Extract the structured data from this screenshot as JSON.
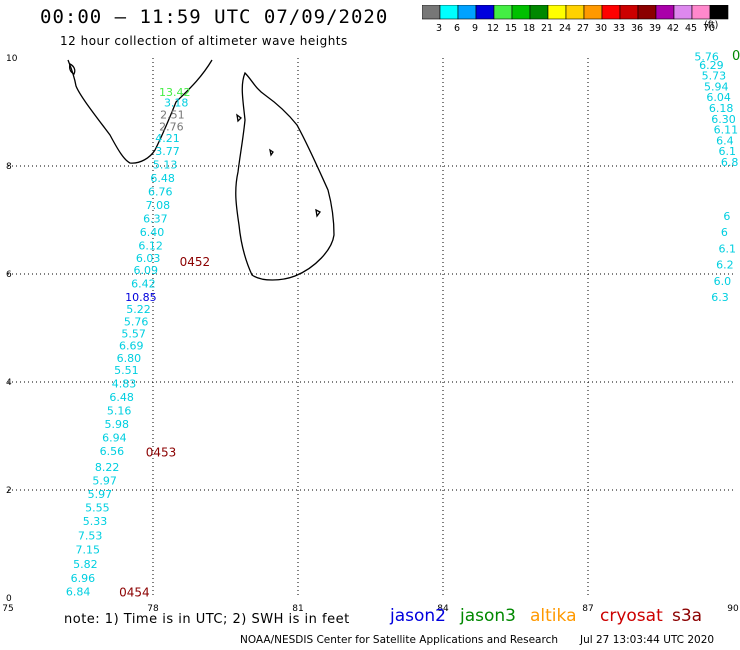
{
  "header": {
    "title": "00:00 – 11:59 UTC 07/09/2020",
    "subtitle": "12 hour collection of altimeter wave heights"
  },
  "legend": {
    "bins": [
      {
        "label": "3",
        "color": "#777777"
      },
      {
        "label": "6",
        "color": "#00ffff"
      },
      {
        "label": "9",
        "color": "#00a2ff"
      },
      {
        "label": "12",
        "color": "#0000dd"
      },
      {
        "label": "15",
        "color": "#44ee44"
      },
      {
        "label": "18",
        "color": "#00c000"
      },
      {
        "label": "21",
        "color": "#008800"
      },
      {
        "label": "24",
        "color": "#ffff00"
      },
      {
        "label": "27",
        "color": "#ffd200"
      },
      {
        "label": "30",
        "color": "#ff9900"
      },
      {
        "label": "33",
        "color": "#ff0000"
      },
      {
        "label": "36",
        "color": "#cc0000"
      },
      {
        "label": "39",
        "color": "#8b0000"
      },
      {
        "label": "42",
        "color": "#aa00aa"
      },
      {
        "label": "45",
        "color": "#dd88ee"
      },
      {
        "label": "70",
        "color": "#ff88cc"
      },
      {
        "label": "",
        "color": "#000000"
      }
    ],
    "unit": "(ft)"
  },
  "axes": {
    "x_ticks": [
      "75",
      "78",
      "81",
      "84",
      "87",
      "90"
    ],
    "y_ticks": [
      "0",
      "2",
      "4",
      "6",
      "8",
      "10"
    ]
  },
  "track": {
    "color_low": "#00cfe0",
    "readings": [
      {
        "lon": 78.45,
        "lat": 9.3,
        "value": "13.42",
        "color": "#44ee44"
      },
      {
        "lon": 78.48,
        "lat": 9.1,
        "value": "3.18",
        "color": "#00cfe0"
      },
      {
        "lon": 78.4,
        "lat": 8.88,
        "value": "2.51",
        "color": "#777777"
      },
      {
        "lon": 78.38,
        "lat": 8.66,
        "value": "2.76",
        "color": "#777777"
      },
      {
        "lon": 78.3,
        "lat": 8.44,
        "value": "4.21",
        "color": "#00cfe0"
      },
      {
        "lon": 78.3,
        "lat": 8.2,
        "value": "3.77",
        "color": "#00cfe0"
      },
      {
        "lon": 78.25,
        "lat": 7.95,
        "value": "5.13",
        "color": "#00cfe0"
      },
      {
        "lon": 78.2,
        "lat": 7.7,
        "value": "6.48",
        "color": "#00cfe0"
      },
      {
        "lon": 78.15,
        "lat": 7.45,
        "value": "6.76",
        "color": "#00cfe0"
      },
      {
        "lon": 78.1,
        "lat": 7.2,
        "value": "7.08",
        "color": "#00cfe0"
      },
      {
        "lon": 78.05,
        "lat": 6.95,
        "value": "6.37",
        "color": "#00cfe0"
      },
      {
        "lon": 77.98,
        "lat": 6.7,
        "value": "6.40",
        "color": "#00cfe0"
      },
      {
        "lon": 77.95,
        "lat": 6.45,
        "value": "6.12",
        "color": "#00cfe0"
      },
      {
        "lon": 77.9,
        "lat": 6.22,
        "value": "6.03",
        "color": "#00cfe0"
      },
      {
        "lon": 77.85,
        "lat": 6.0,
        "value": "6.09",
        "color": "#00cfe0"
      },
      {
        "lon": 77.8,
        "lat": 5.75,
        "value": "6.42",
        "color": "#00cfe0"
      },
      {
        "lon": 77.75,
        "lat": 5.5,
        "value": "10.85",
        "color": "#0000dd"
      },
      {
        "lon": 77.7,
        "lat": 5.28,
        "value": "5.22",
        "color": "#00cfe0"
      },
      {
        "lon": 77.65,
        "lat": 5.05,
        "value": "5.76",
        "color": "#00cfe0"
      },
      {
        "lon": 77.6,
        "lat": 4.82,
        "value": "5.57",
        "color": "#00cfe0"
      },
      {
        "lon": 77.55,
        "lat": 4.6,
        "value": "6.69",
        "color": "#00cfe0"
      },
      {
        "lon": 77.5,
        "lat": 4.37,
        "value": "6.80",
        "color": "#00cfe0"
      },
      {
        "lon": 77.45,
        "lat": 4.15,
        "value": "5.51",
        "color": "#00cfe0"
      },
      {
        "lon": 77.4,
        "lat": 3.9,
        "value": "4.83",
        "color": "#00cfe0"
      },
      {
        "lon": 77.35,
        "lat": 3.65,
        "value": "6.48",
        "color": "#00cfe0"
      },
      {
        "lon": 77.3,
        "lat": 3.4,
        "value": "5.16",
        "color": "#00cfe0"
      },
      {
        "lon": 77.25,
        "lat": 3.15,
        "value": "5.98",
        "color": "#00cfe0"
      },
      {
        "lon": 77.2,
        "lat": 2.9,
        "value": "6.94",
        "color": "#00cfe0"
      },
      {
        "lon": 77.15,
        "lat": 2.65,
        "value": "6.56",
        "color": "#00cfe0"
      },
      {
        "lon": 77.05,
        "lat": 2.35,
        "value": "8.22",
        "color": "#00cfe0"
      },
      {
        "lon": 77.0,
        "lat": 2.1,
        "value": "5.97",
        "color": "#00cfe0"
      },
      {
        "lon": 76.9,
        "lat": 1.85,
        "value": "5.97",
        "color": "#00cfe0"
      },
      {
        "lon": 76.85,
        "lat": 1.6,
        "value": "5.55",
        "color": "#00cfe0"
      },
      {
        "lon": 76.8,
        "lat": 1.35,
        "value": "5.33",
        "color": "#00cfe0"
      },
      {
        "lon": 76.7,
        "lat": 1.08,
        "value": "7.53",
        "color": "#00cfe0"
      },
      {
        "lon": 76.65,
        "lat": 0.82,
        "value": "7.15",
        "color": "#00cfe0"
      },
      {
        "lon": 76.6,
        "lat": 0.56,
        "value": "5.82",
        "color": "#00cfe0"
      },
      {
        "lon": 76.55,
        "lat": 0.3,
        "value": "6.96",
        "color": "#00cfe0"
      },
      {
        "lon": 76.45,
        "lat": 0.05,
        "value": "6.84",
        "color": "#00cfe0"
      }
    ],
    "time_labels": [
      {
        "lon": 78.55,
        "lat": 6.15,
        "text": "0452"
      },
      {
        "lon": 77.85,
        "lat": 2.62,
        "text": "0453"
      },
      {
        "lon": 77.3,
        "lat": 0.03,
        "text": "0454"
      }
    ],
    "time_color": "#8b0000",
    "edge_readings": [
      {
        "lon": 89.2,
        "lat": 9.95,
        "value": "5.76"
      },
      {
        "lon": 89.3,
        "lat": 9.8,
        "value": "6.29"
      },
      {
        "lon": 89.35,
        "lat": 9.6,
        "value": "5.73"
      },
      {
        "lon": 89.4,
        "lat": 9.4,
        "value": "5.94"
      },
      {
        "lon": 89.45,
        "lat": 9.2,
        "value": "6.04"
      },
      {
        "lon": 89.5,
        "lat": 9.0,
        "value": "6.18"
      },
      {
        "lon": 89.55,
        "lat": 8.8,
        "value": "6.30"
      },
      {
        "lon": 89.6,
        "lat": 8.6,
        "value": "6.11"
      },
      {
        "lon": 89.65,
        "lat": 8.4,
        "value": "6.4"
      },
      {
        "lon": 89.7,
        "lat": 8.2,
        "value": "6.1"
      },
      {
        "lon": 89.75,
        "lat": 8.0,
        "value": "6.8"
      },
      {
        "lon": 89.8,
        "lat": 7.0,
        "value": "6"
      },
      {
        "lon": 89.75,
        "lat": 6.7,
        "value": "6"
      },
      {
        "lon": 89.7,
        "lat": 6.4,
        "value": "6.1"
      },
      {
        "lon": 89.65,
        "lat": 6.1,
        "value": "6.2"
      },
      {
        "lon": 89.6,
        "lat": 5.8,
        "value": "6.0"
      },
      {
        "lon": 89.55,
        "lat": 5.5,
        "value": "6.3"
      }
    ],
    "edge_marker": {
      "lon": 90.0,
      "lat": 10.0,
      "value": "0",
      "color": "#008800"
    }
  },
  "footer": {
    "note": "note: 1) Time is in UTC; 2) SWH is in feet",
    "missions": [
      {
        "name": "jason2",
        "color": "#0000dd"
      },
      {
        "name": "jason3",
        "color": "#008800"
      },
      {
        "name": "altika",
        "color": "#ff9900"
      },
      {
        "name": "cryosat",
        "color": "#cc0000"
      },
      {
        "name": "s3a",
        "color": "#8b0000"
      }
    ],
    "credit": "NOAA/NESDIS Center for Satellite Applications and Research",
    "generated": "Jul 27 13:03:44 UTC 2020"
  }
}
